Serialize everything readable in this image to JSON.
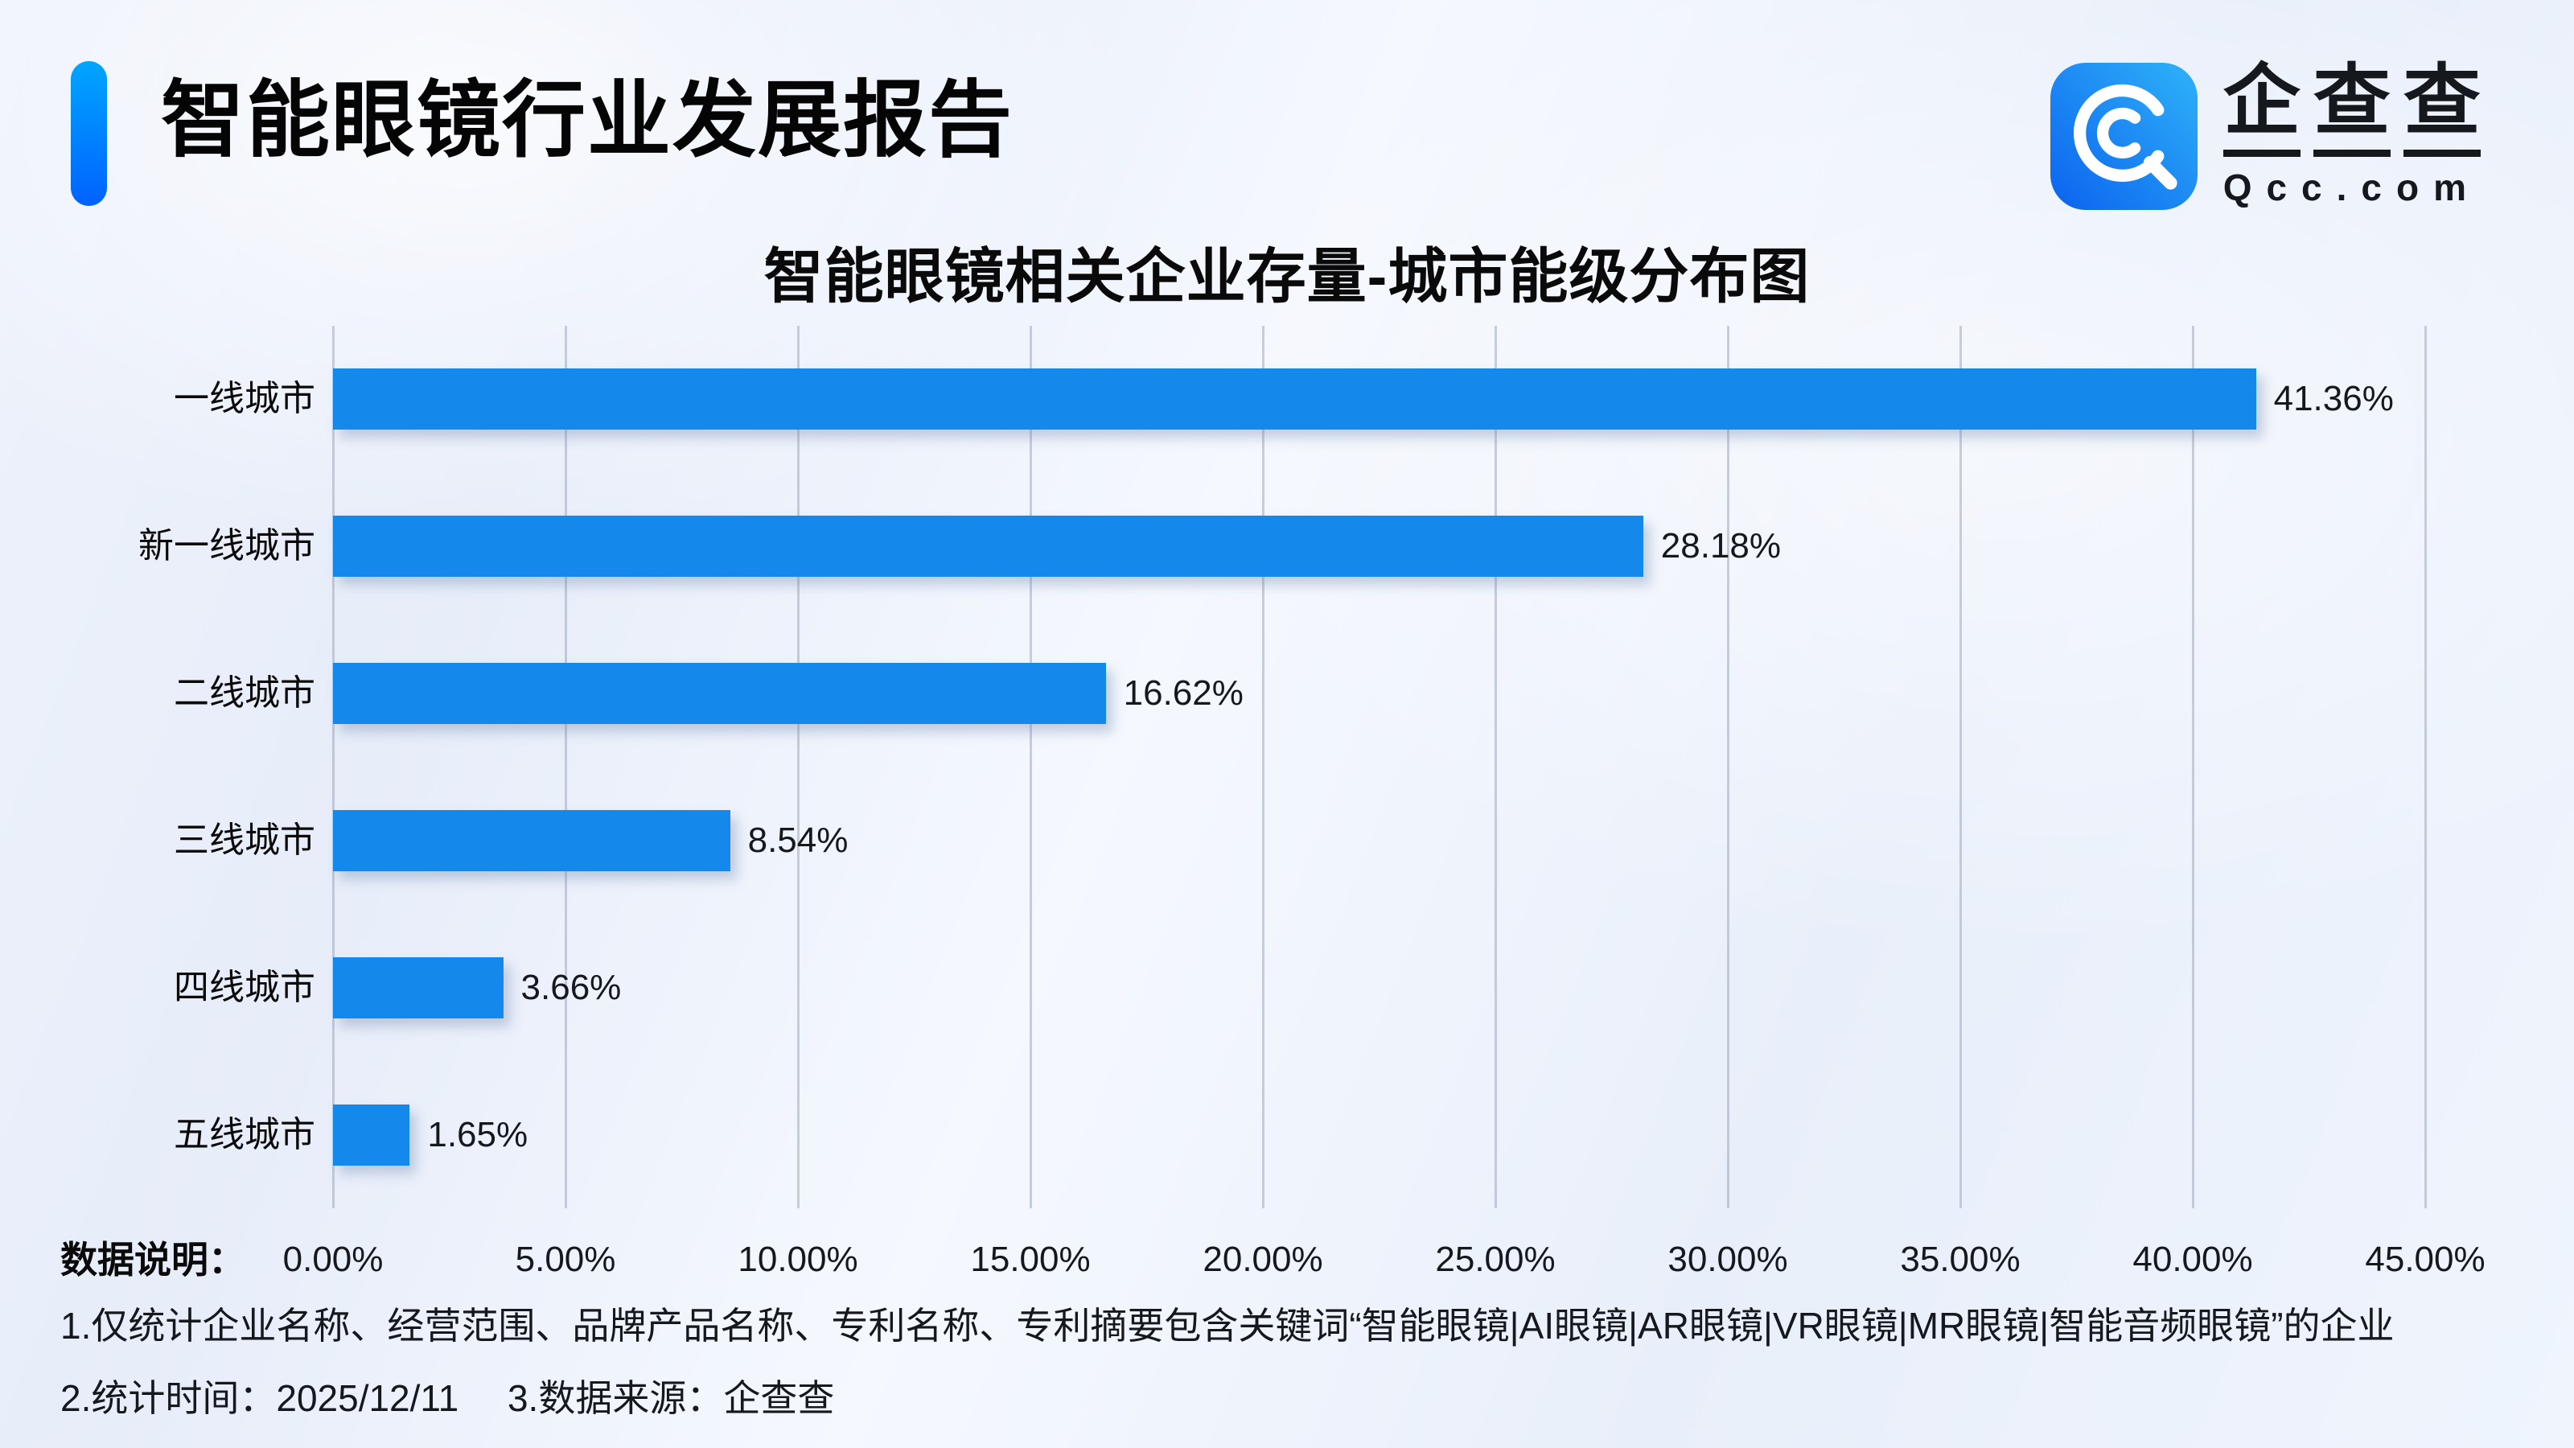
{
  "header": {
    "title": "智能眼镜行业发展报告"
  },
  "logo": {
    "icon": "qcc-magnifier-icon",
    "brand_chars": [
      "企",
      "查",
      "查"
    ],
    "domain": "Qcc.com",
    "icon_gradient": [
      "#2FB3F9",
      "#0B62EE"
    ]
  },
  "chart_data": {
    "type": "bar",
    "orientation": "horizontal",
    "title": "智能眼镜相关企业存量-城市能级分布图",
    "categories": [
      "一线城市",
      "新一线城市",
      "二线城市",
      "三线城市",
      "四线城市",
      "五线城市"
    ],
    "values": [
      41.36,
      28.18,
      16.62,
      8.54,
      3.66,
      1.65
    ],
    "value_labels": [
      "41.36%",
      "28.18%",
      "16.62%",
      "8.54%",
      "3.66%",
      "1.65%"
    ],
    "xlim": [
      0,
      45
    ],
    "x_ticks": [
      "0.00%",
      "5.00%",
      "10.00%",
      "15.00%",
      "20.00%",
      "25.00%",
      "30.00%",
      "35.00%",
      "40.00%",
      "45.00%"
    ],
    "bar_color": "#1488EB",
    "grid": true,
    "legend": null
  },
  "footer": {
    "label": "数据说明：",
    "note1": "1.仅统计企业名称、经营范围、品牌产品名称、专利名称、专利摘要包含关键词“智能眼镜|AI眼镜|AR眼镜|VR眼镜|MR眼镜|智能音频眼镜”的企业",
    "note2_time": "2.统计时间：2025/12/11",
    "note2_source": "3.数据来源：企查查"
  },
  "colors": {
    "accent_gradient": [
      "#00A6FF",
      "#0062FF"
    ],
    "bar": "#1488EB",
    "gridline": "#949EB4",
    "text": "#15181D",
    "background": "#EDF2FB"
  }
}
